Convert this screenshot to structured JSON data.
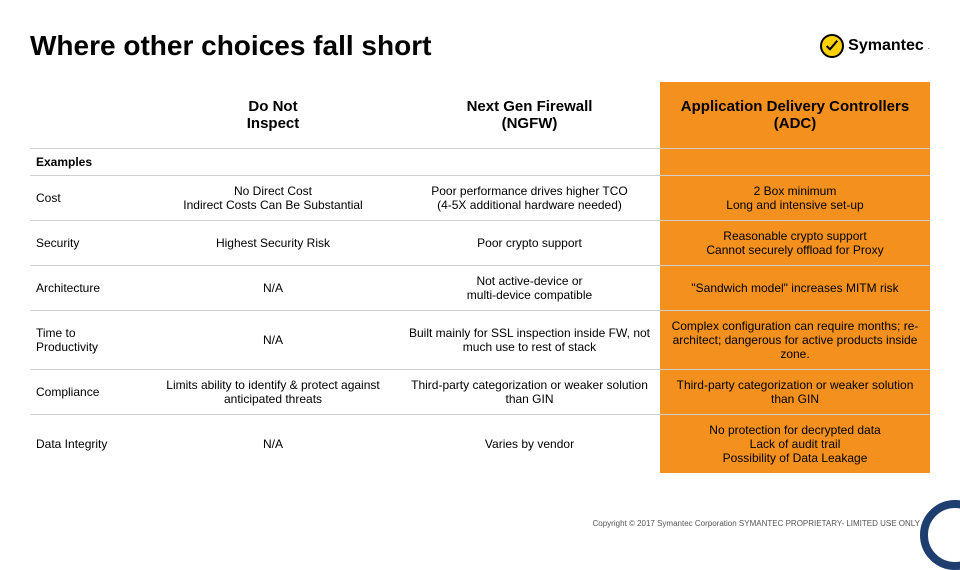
{
  "colors": {
    "accent_orange": "#f4911e",
    "title_black": "#000000",
    "grid_gray": "#d0d0d0",
    "footer_gray": "#555555",
    "corner_navy": "#1d3e6e",
    "logo_yellow": "#ffd100"
  },
  "title": "Where other choices fall short",
  "logo": {
    "text": "Symantec",
    "trademark": "."
  },
  "table": {
    "columns": [
      {
        "label": "",
        "header_class": "hdr-white",
        "cell_class": ""
      },
      {
        "label": "Do Not\nInspect",
        "header_class": "hdr-white",
        "cell_class": ""
      },
      {
        "label": "Next Gen Firewall\n(NGFW)",
        "header_class": "hdr-white",
        "cell_class": ""
      },
      {
        "label": "Application Delivery Controllers\n(ADC)",
        "header_class": "hdr-adc",
        "cell_class": "col-adc"
      }
    ],
    "examples_label": "Examples",
    "rows": [
      {
        "label": "Cost",
        "cells": [
          "No Direct Cost\nIndirect Costs Can Be Substantial",
          "Poor performance drives higher TCO\n(4-5X additional hardware needed)",
          "2 Box minimum\nLong and intensive set-up"
        ]
      },
      {
        "label": "Security",
        "cells": [
          "Highest Security Risk",
          "Poor crypto support",
          "Reasonable crypto support\nCannot securely offload for Proxy"
        ]
      },
      {
        "label": "Architecture",
        "cells": [
          "N/A",
          "Not active-device or\nmulti-device compatible",
          "\"Sandwich model\" increases MITM risk"
        ]
      },
      {
        "label": "Time to\nProductivity",
        "cells": [
          "N/A",
          "Built mainly for SSL inspection inside FW, not much use to rest of stack",
          "Complex configuration can require months; re-architect; dangerous for active products inside zone."
        ]
      },
      {
        "label": "Compliance",
        "cells": [
          "Limits ability to identify & protect against anticipated threats",
          "Third-party categorization or weaker solution than GIN",
          "Third-party categorization or weaker solution than GIN"
        ]
      },
      {
        "label": "Data Integrity",
        "cells": [
          "N/A",
          "Varies by vendor",
          "No protection for decrypted data\nLack of audit trail\nPossibility of Data Leakage"
        ]
      }
    ]
  },
  "footer": "Copyright © 2017 Symantec Corporation SYMANTEC PROPRIETARY- LIMITED USE ONLY"
}
